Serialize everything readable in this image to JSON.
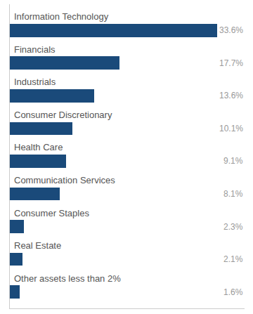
{
  "chart_data": {
    "type": "bar",
    "orientation": "horizontal",
    "categories": [
      "Information Technology",
      "Financials",
      "Industrials",
      "Consumer Discretionary",
      "Health Care",
      "Communication Services",
      "Consumer Staples",
      "Real Estate",
      "Other assets less than 2%"
    ],
    "values": [
      33.6,
      17.7,
      13.6,
      10.1,
      9.1,
      8.1,
      2.3,
      2.1,
      1.6
    ],
    "value_labels": [
      "33.6%",
      "17.7%",
      "13.6%",
      "10.1%",
      "9.1%",
      "8.1%",
      "2.3%",
      "2.1%",
      "1.6%"
    ],
    "data_labels": true,
    "color": "#1a4a7a",
    "xlim": [
      0,
      38
    ],
    "tick_labels": false,
    "grid": false
  }
}
